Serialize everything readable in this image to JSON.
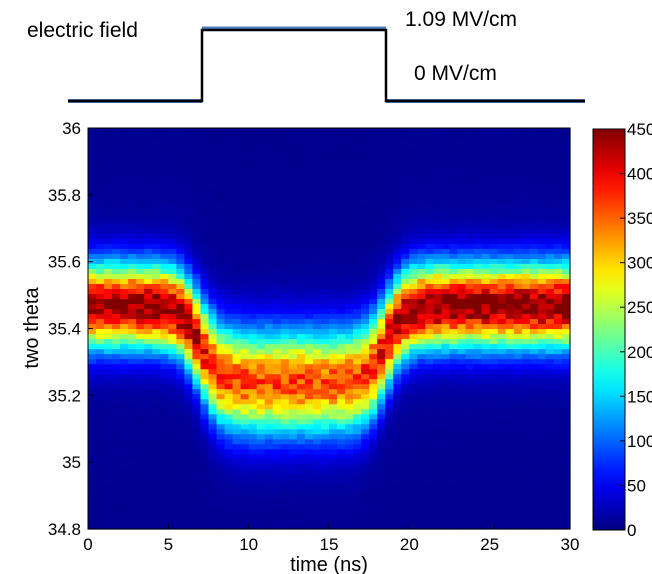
{
  "chart_data": {
    "type": "heatmap",
    "field_trace": {
      "label": "electric field",
      "high_label": "1.09 MV/cm",
      "low_label": "0 MV/cm",
      "on_time_ns": 7,
      "off_time_ns": 18.5,
      "color": "#000000",
      "baseline_color": "#4f7fbf"
    },
    "xlabel": "time (ns)",
    "ylabel": "two theta",
    "xlim": [
      0,
      30
    ],
    "ylim": [
      34.8,
      36
    ],
    "xticks": [
      "0",
      "5",
      "10",
      "15",
      "20",
      "25",
      "30"
    ],
    "yticks": [
      "34.8",
      "35",
      "35.2",
      "35.4",
      "35.6",
      "35.8",
      "36"
    ],
    "colorbar": {
      "min": 0,
      "max": 450,
      "ticks": [
        "0",
        "50",
        "100",
        "150",
        "200",
        "250",
        "300",
        "350",
        "400",
        "450"
      ],
      "colormap": "jet"
    },
    "peak_center_two_theta": {
      "field_off": 35.47,
      "field_on": 35.24
    },
    "peak_max_intensity": {
      "field_off": 430,
      "field_on": 340
    },
    "background_intensity": 5
  }
}
